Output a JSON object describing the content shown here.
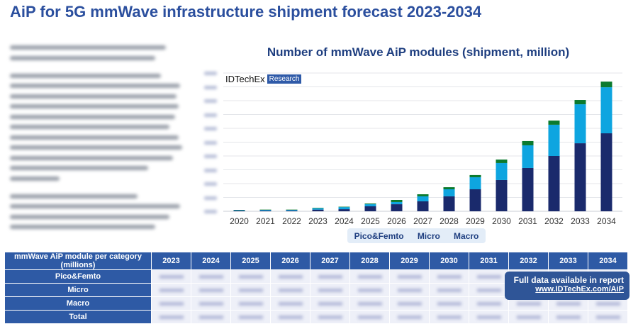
{
  "title": "AiP for 5G mmWave infrastructure shipment forecast 2023-2034",
  "logo": {
    "brand": "IDTechEx",
    "tag": "Research"
  },
  "chart_data": {
    "type": "bar",
    "stacked": true,
    "title": "Number of mmWave AiP modules (shipment, million)",
    "categories": [
      "2020",
      "2021",
      "2022",
      "2023",
      "2024",
      "2025",
      "2026",
      "2027",
      "2028",
      "2029",
      "2030",
      "2031",
      "2032",
      "2033",
      "2034"
    ],
    "series": [
      {
        "name": "Macro",
        "color": "#1a2a6c",
        "values": [
          0.05,
          0.05,
          0.05,
          0.12,
          0.15,
          0.36,
          0.51,
          0.72,
          1.08,
          1.59,
          2.26,
          3.13,
          4.0,
          4.92,
          5.64
        ]
      },
      {
        "name": "Micro",
        "color": "#0ea5e0",
        "values": [
          0.03,
          0.05,
          0.05,
          0.1,
          0.15,
          0.15,
          0.16,
          0.36,
          0.51,
          0.87,
          1.23,
          1.64,
          2.26,
          2.82,
          3.33
        ]
      },
      {
        "name": "Pico&Femto",
        "color": "#0b7a2e",
        "values": [
          0.02,
          0.02,
          0.02,
          0.03,
          0.03,
          0.05,
          0.15,
          0.15,
          0.15,
          0.16,
          0.25,
          0.31,
          0.3,
          0.31,
          0.41
        ]
      }
    ],
    "ylim": [
      0,
      10
    ],
    "grid": true,
    "legend": "bottom",
    "legend_order": [
      "Pico&Femto",
      "Micro",
      "Macro"
    ]
  },
  "table": {
    "header": "mmWave AiP module per category (millions)",
    "years": [
      "2023",
      "2024",
      "2025",
      "2026",
      "2027",
      "2028",
      "2029",
      "2030",
      "2031",
      "2032",
      "2033",
      "2034"
    ],
    "rows": [
      "Pico&Femto",
      "Micro",
      "Macro",
      "Total"
    ]
  },
  "callout": {
    "line1": "Full data available in report",
    "link": "www.IDTechEx.com/AiP"
  }
}
